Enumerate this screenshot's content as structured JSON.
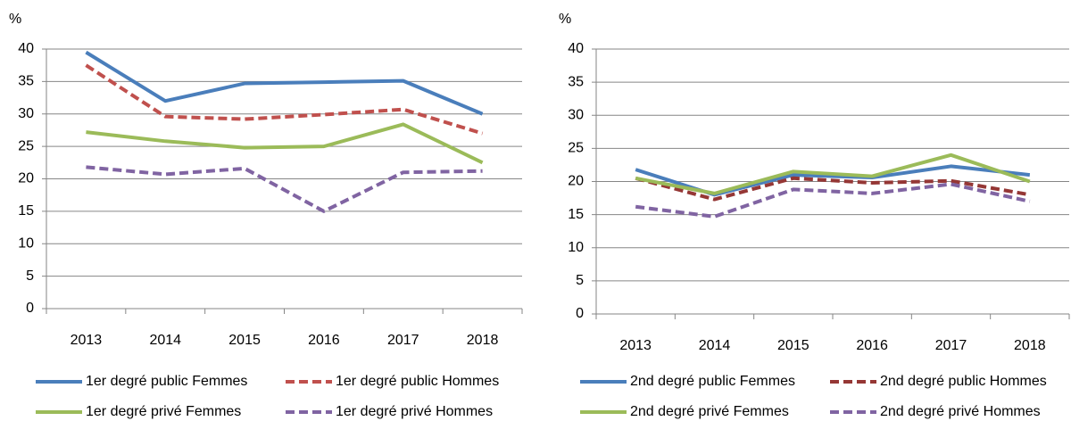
{
  "chart_data": [
    {
      "type": "line",
      "ylabel": "%",
      "categories": [
        "2013",
        "2014",
        "2015",
        "2016",
        "2017",
        "2018"
      ],
      "ylim": [
        0,
        40
      ],
      "yticks": [
        0,
        5,
        10,
        15,
        20,
        25,
        30,
        35,
        40
      ],
      "grid": true,
      "series": [
        {
          "name": "1er degré public Femmes",
          "color": "#4a7ebb",
          "style": "solid",
          "values": [
            39.5,
            32,
            34.7,
            34.9,
            35.1,
            30
          ]
        },
        {
          "name": "1er degré public Hommes",
          "color": "#c0504d",
          "style": "dashed",
          "values": [
            37.5,
            29.6,
            29.2,
            29.9,
            30.7,
            27
          ]
        },
        {
          "name": "1er degré privé Femmes",
          "color": "#9bbb59",
          "style": "solid",
          "values": [
            27.2,
            25.8,
            24.8,
            25,
            28.4,
            22.5
          ]
        },
        {
          "name": "1er degré privé Hommes",
          "color": "#8064a2",
          "style": "dashed",
          "values": [
            21.8,
            20.7,
            21.6,
            15,
            21,
            21.2
          ]
        }
      ]
    },
    {
      "type": "line",
      "ylabel": "%",
      "categories": [
        "2013",
        "2014",
        "2015",
        "2016",
        "2017",
        "2018"
      ],
      "ylim": [
        0,
        40
      ],
      "yticks": [
        0,
        5,
        10,
        15,
        20,
        25,
        30,
        35,
        40
      ],
      "grid": true,
      "series": [
        {
          "name": "2nd degré public Femmes",
          "color": "#4a7ebb",
          "style": "solid",
          "values": [
            21.8,
            18,
            21,
            20.6,
            22.3,
            21
          ]
        },
        {
          "name": "2nd degré public Hommes",
          "color": "#953735",
          "style": "dashed",
          "values": [
            20.5,
            17.3,
            20.5,
            19.8,
            20.1,
            18
          ]
        },
        {
          "name": "2nd degré privé Femmes",
          "color": "#9bbb59",
          "style": "solid",
          "values": [
            20.5,
            18.2,
            21.5,
            20.8,
            24,
            20
          ]
        },
        {
          "name": "2nd degré privé Hommes",
          "color": "#8064a2",
          "style": "dashed",
          "values": [
            16.2,
            14.7,
            18.8,
            18.2,
            19.6,
            17
          ]
        }
      ]
    }
  ]
}
